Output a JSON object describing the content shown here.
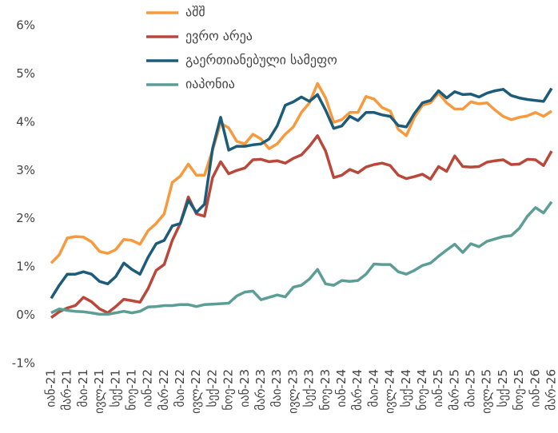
{
  "chart_data": {
    "type": "line",
    "categories": [
      "იან-21",
      null,
      "მარ-21",
      null,
      "მაი-21",
      null,
      "ივლ-21",
      null,
      "სექ-21",
      null,
      "ნოე-21",
      null,
      "იან-22",
      null,
      "მარ-22",
      null,
      "მაი-22",
      null,
      "ივლ-22",
      null,
      "სექ-22",
      null,
      "ნოე-22",
      null,
      "იან-23",
      null,
      "მარ-23",
      null,
      "მაი-23",
      null,
      "ივლ-23",
      null,
      "სექ-23",
      null,
      "ნოე-23",
      null,
      "იან-24",
      null,
      "მარ-24",
      null,
      "მაი-24",
      null,
      "ივლ-24",
      null,
      "სექ-24",
      null,
      "ნოე-24",
      null,
      "იან-25",
      null,
      "მარ-25",
      null,
      "მაი-25",
      null,
      "ივლ-25",
      null,
      "სექ-25",
      null,
      "ნოე-25",
      null,
      "იან-26",
      null,
      "მარ-26"
    ],
    "series": [
      {
        "name": "აშშ",
        "color": "#f79a3e",
        "values": [
          1.08,
          1.25,
          1.6,
          1.63,
          1.62,
          1.52,
          1.32,
          1.28,
          1.36,
          1.57,
          1.55,
          1.47,
          1.75,
          1.9,
          2.1,
          2.75,
          2.88,
          3.13,
          2.9,
          2.9,
          3.42,
          3.98,
          3.88,
          3.6,
          3.55,
          3.75,
          3.65,
          3.45,
          3.55,
          3.75,
          3.9,
          4.2,
          4.4,
          4.8,
          4.5,
          4.0,
          4.05,
          4.2,
          4.2,
          4.53,
          4.48,
          4.3,
          4.23,
          3.85,
          3.72,
          4.1,
          4.35,
          4.4,
          4.6,
          4.4,
          4.27,
          4.27,
          4.42,
          4.38,
          4.4,
          4.25,
          4.12,
          4.05,
          4.1,
          4.13,
          4.2,
          4.12,
          4.23
        ]
      },
      {
        "name": "ევრო არეა",
        "color": "#b9473a",
        "values": [
          -0.05,
          0.07,
          0.15,
          0.2,
          0.37,
          0.28,
          0.13,
          0.05,
          0.18,
          0.33,
          0.3,
          0.27,
          0.55,
          0.93,
          1.05,
          1.55,
          1.9,
          2.45,
          2.1,
          2.05,
          2.85,
          3.18,
          2.93,
          3.0,
          3.05,
          3.22,
          3.23,
          3.18,
          3.2,
          3.15,
          3.25,
          3.32,
          3.5,
          3.72,
          3.4,
          2.85,
          2.9,
          3.02,
          2.95,
          3.07,
          3.12,
          3.15,
          3.1,
          2.9,
          2.83,
          2.87,
          2.92,
          2.82,
          3.08,
          2.98,
          3.3,
          3.08,
          3.07,
          3.08,
          3.17,
          3.2,
          3.22,
          3.12,
          3.13,
          3.23,
          3.22,
          3.1,
          3.4
        ]
      },
      {
        "name": "გაერთიანებული სამეფო",
        "color": "#1c5c7a",
        "values": [
          0.35,
          0.62,
          0.85,
          0.85,
          0.9,
          0.85,
          0.7,
          0.65,
          0.8,
          1.08,
          0.95,
          0.85,
          1.2,
          1.48,
          1.55,
          1.85,
          1.9,
          2.38,
          2.13,
          2.3,
          3.45,
          4.1,
          3.42,
          3.5,
          3.5,
          3.53,
          3.55,
          3.65,
          3.92,
          4.35,
          4.42,
          4.52,
          4.43,
          4.57,
          4.25,
          3.87,
          3.92,
          4.12,
          4.03,
          4.2,
          4.2,
          4.15,
          4.12,
          3.93,
          3.9,
          4.18,
          4.4,
          4.45,
          4.65,
          4.5,
          4.63,
          4.57,
          4.58,
          4.52,
          4.6,
          4.65,
          4.68,
          4.55,
          4.5,
          4.47,
          4.45,
          4.43,
          4.7
        ]
      },
      {
        "name": "იაპონია",
        "color": "#5c9e96",
        "values": [
          0.05,
          0.13,
          0.1,
          0.08,
          0.07,
          0.05,
          0.02,
          0.02,
          0.05,
          0.08,
          0.05,
          0.08,
          0.17,
          0.18,
          0.2,
          0.2,
          0.22,
          0.22,
          0.18,
          0.22,
          0.23,
          0.24,
          0.25,
          0.4,
          0.48,
          0.5,
          0.32,
          0.37,
          0.42,
          0.38,
          0.58,
          0.62,
          0.75,
          0.95,
          0.65,
          0.62,
          0.72,
          0.7,
          0.72,
          0.85,
          1.06,
          1.05,
          1.05,
          0.9,
          0.85,
          0.93,
          1.03,
          1.08,
          1.22,
          1.35,
          1.47,
          1.3,
          1.48,
          1.42,
          1.53,
          1.58,
          1.63,
          1.65,
          1.8,
          2.05,
          2.23,
          2.12,
          2.35
        ]
      }
    ],
    "ylim": [
      -1,
      6
    ],
    "yticks": [
      {
        "value": -1,
        "label": "-1%"
      },
      {
        "value": 0,
        "label": "0%"
      },
      {
        "value": 1,
        "label": "1%"
      },
      {
        "value": 2,
        "label": "2%"
      },
      {
        "value": 3,
        "label": "3%"
      },
      {
        "value": 4,
        "label": "4%"
      },
      {
        "value": 5,
        "label": "5%"
      },
      {
        "value": 6,
        "label": "6%"
      }
    ],
    "legend": "top"
  }
}
